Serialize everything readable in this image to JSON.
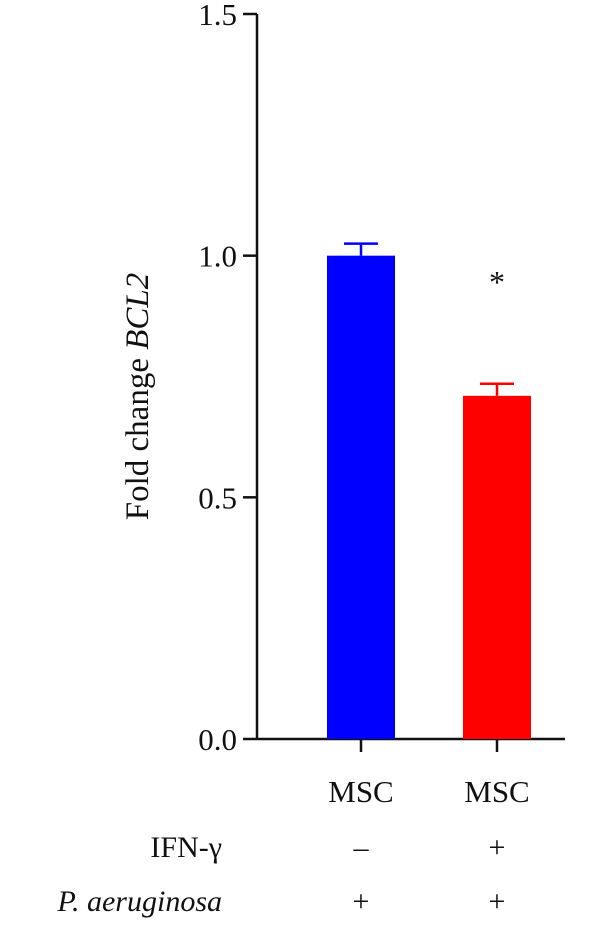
{
  "chart_data": {
    "type": "bar",
    "ylabel_plain": "Fold change",
    "ylabel_italic": "BCL2",
    "ylim": [
      0,
      1.5
    ],
    "yticks": [
      0.0,
      0.5,
      1.0,
      1.5
    ],
    "ytick_labels": [
      "0.0",
      "0.5",
      "1.0",
      "1.5"
    ],
    "categories": [
      "MSC",
      "MSC"
    ],
    "values": [
      1.0,
      0.71
    ],
    "errors": [
      0.025,
      0.025
    ],
    "colors": [
      "#0000ff",
      "#ff0000"
    ],
    "annotations": [
      {
        "category_index": 1,
        "text": "*",
        "y": 0.96
      }
    ],
    "condition_rows": [
      {
        "label": "IFN-γ",
        "italic": false,
        "signs": [
          "–",
          "+"
        ]
      },
      {
        "label": "P. aeruginosa",
        "italic": true,
        "signs": [
          "+",
          "+"
        ]
      }
    ]
  }
}
